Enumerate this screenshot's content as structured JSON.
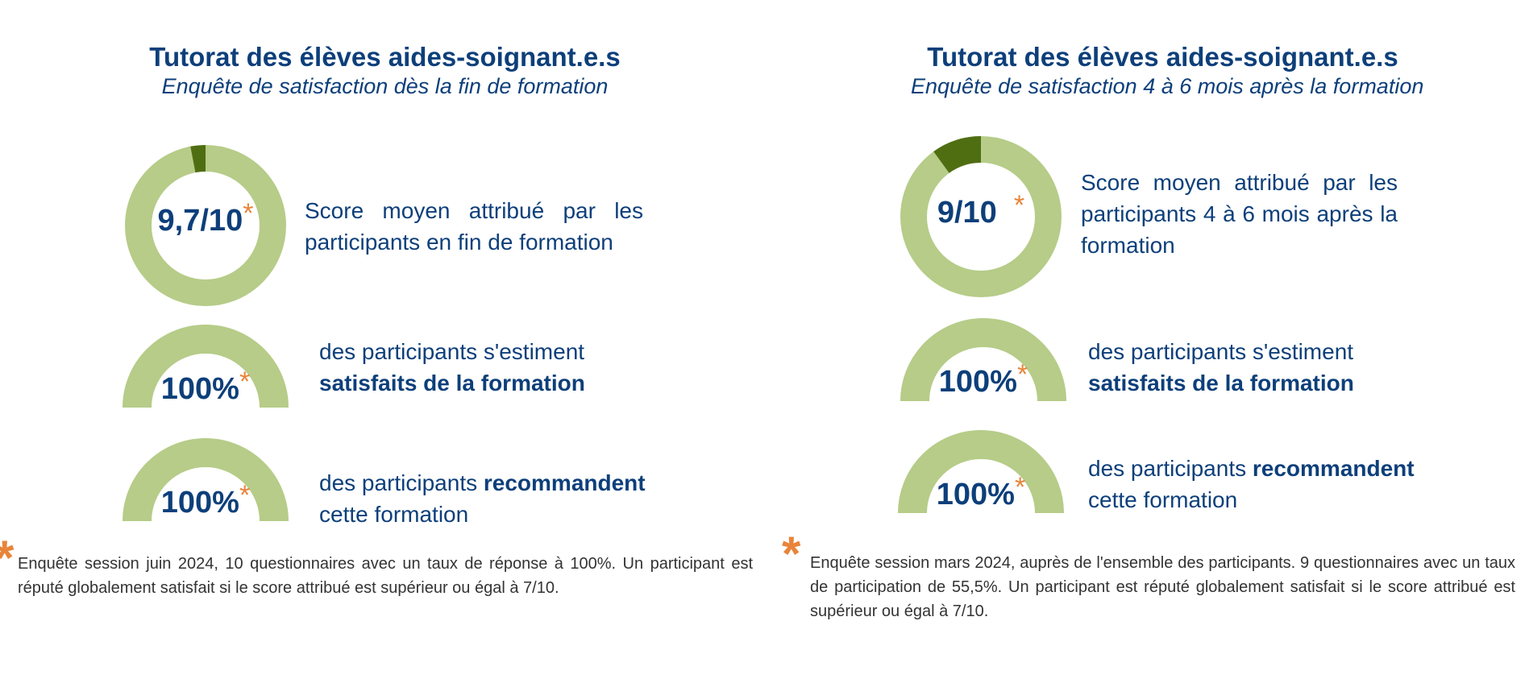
{
  "colors": {
    "ring_light": "#b6cc88",
    "ring_dark": "#4f6e12",
    "text": "#0d3f7a",
    "asterisk": "#e8843a",
    "footnote": "#333333"
  },
  "left": {
    "title": "Tutorat des élèves aides-soignant.e.s",
    "subtitle": "Enquête de satisfaction dès la fin de formation",
    "score": {
      "value_label": "9,7/10",
      "star": "*",
      "desc": "Score moyen attribué par les participants en fin de formation"
    },
    "satisfied": {
      "value_label": "100%",
      "star": "*",
      "desc_plain": "des participants s'estiment",
      "desc_bold": "satisfaits de la formation"
    },
    "recommend": {
      "value_label": "100%",
      "star": "*",
      "desc_plain": "des participants",
      "desc_bold": "recommandent",
      "desc_plain2": "cette formation"
    },
    "footnote_star": "*",
    "footnote": "Enquête session juin 2024, 10 questionnaires avec un taux de réponse à 100%. Un participant est réputé globalement satisfait si le score attribué est supérieur ou égal à 7/10."
  },
  "right": {
    "title": "Tutorat des élèves aides-soignant.e.s",
    "subtitle": "Enquête de satisfaction 4 à 6 mois après la formation",
    "score": {
      "value_label": "9/10",
      "star": "*",
      "desc": "Score moyen attribué par les participants  4 à 6 mois après la formation"
    },
    "satisfied": {
      "value_label": "100%",
      "star": "*",
      "desc_plain": "des participants s'estiment",
      "desc_bold": "satisfaits de la formation"
    },
    "recommend": {
      "value_label": "100%",
      "star": "*",
      "desc_plain": "des participants",
      "desc_bold": "recommandent",
      "desc_plain2": "cette formation"
    },
    "footnote_star": "*",
    "footnote": "Enquête session mars 2024, auprès de l'ensemble des participants. 9 questionnaires avec un taux de participation de 55,5%. Un participant est réputé globalement satisfait si le score attribué est supérieur ou égal à 7/10."
  },
  "chart_data": [
    {
      "type": "pie",
      "id": "left-score",
      "values": [
        9.7,
        0.3
      ],
      "max": 10
    },
    {
      "type": "pie",
      "id": "left-satisfied",
      "values": [
        100,
        0
      ],
      "max": 100,
      "shape": "half-donut"
    },
    {
      "type": "pie",
      "id": "left-recommend",
      "values": [
        100,
        0
      ],
      "max": 100,
      "shape": "half-donut"
    },
    {
      "type": "pie",
      "id": "right-score",
      "values": [
        9,
        1
      ],
      "max": 10
    },
    {
      "type": "pie",
      "id": "right-satisfied",
      "values": [
        100,
        0
      ],
      "max": 100,
      "shape": "half-donut"
    },
    {
      "type": "pie",
      "id": "right-recommend",
      "values": [
        100,
        0
      ],
      "max": 100,
      "shape": "half-donut"
    }
  ]
}
